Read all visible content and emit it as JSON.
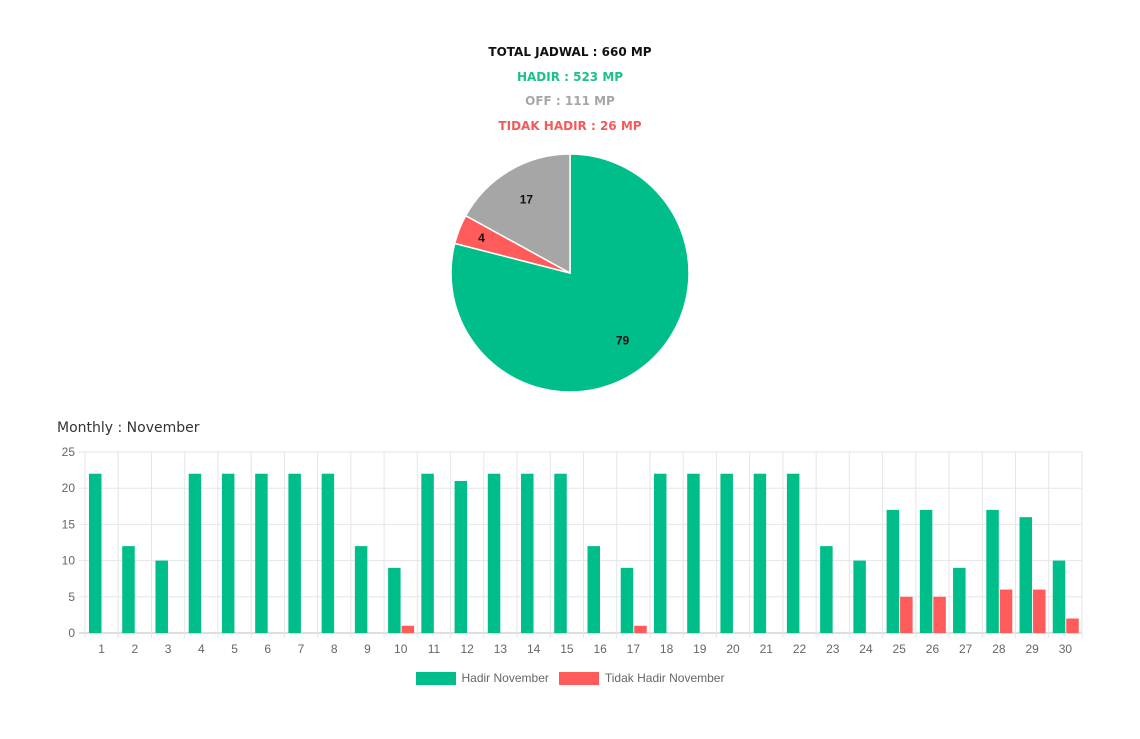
{
  "summary": {
    "total": "TOTAL JADWAL : 660 MP",
    "hadir": "HADIR : 523 MP",
    "off": "OFF : 111 MP",
    "tidak_hadir": "TIDAK HADIR : 26 MP"
  },
  "colors": {
    "hadir": "#00be8a",
    "off": "#a6a6a6",
    "tidak_hadir": "#ff5b5b",
    "grid": "#e6e6e6"
  },
  "monthly_title": "Monthly : November",
  "chart_data": [
    {
      "type": "pie",
      "categories": [
        "Hadir",
        "Tidak Hadir",
        "Off"
      ],
      "values": [
        79,
        4,
        17
      ],
      "labels": [
        "79",
        "4",
        "17"
      ],
      "colors": [
        "#00be8a",
        "#ff5b5b",
        "#a6a6a6"
      ]
    },
    {
      "type": "bar",
      "categories": [
        "1",
        "2",
        "3",
        "4",
        "5",
        "6",
        "7",
        "8",
        "9",
        "10",
        "11",
        "12",
        "13",
        "14",
        "15",
        "16",
        "17",
        "18",
        "19",
        "20",
        "21",
        "22",
        "23",
        "24",
        "25",
        "26",
        "27",
        "28",
        "29",
        "30"
      ],
      "series": [
        {
          "name": "Hadir November",
          "color": "#00be8a",
          "values": [
            22,
            12,
            10,
            22,
            22,
            22,
            22,
            22,
            12,
            9,
            22,
            21,
            22,
            22,
            22,
            12,
            9,
            22,
            22,
            22,
            22,
            22,
            12,
            10,
            17,
            17,
            9,
            17,
            16,
            10
          ]
        },
        {
          "name": "Tidak Hadir November",
          "color": "#ff5b5b",
          "values": [
            0,
            0,
            0,
            0,
            0,
            0,
            0,
            0,
            0,
            1,
            0,
            0,
            0,
            0,
            0,
            0,
            1,
            0,
            0,
            0,
            0,
            0,
            0,
            0,
            5,
            5,
            0,
            6,
            6,
            2
          ]
        }
      ],
      "ylim": [
        0,
        25
      ],
      "yticks": [
        "0",
        "5",
        "10",
        "15",
        "20",
        "25"
      ],
      "grid": true,
      "legend": "bottom"
    }
  ]
}
